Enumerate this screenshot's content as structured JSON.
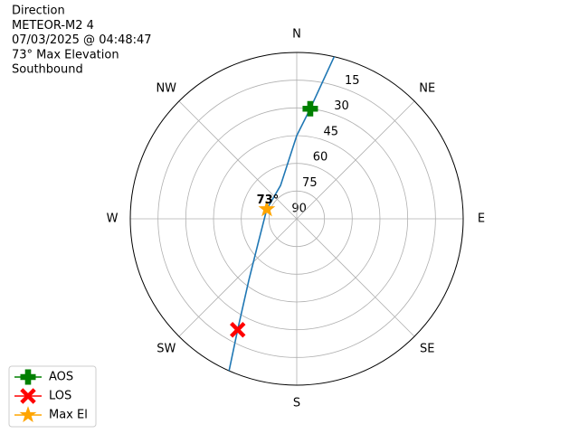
{
  "chart_data": {
    "type": "polar",
    "title_lines": [
      "Direction",
      "METEOR-M2 4",
      "07/03/2025 @ 04:48:47",
      "73° Max Elevation",
      "Southbound"
    ],
    "xticks": [
      {
        "value": 0,
        "label": "N"
      },
      {
        "value": 45,
        "label": "NE"
      },
      {
        "value": 90,
        "label": "E"
      },
      {
        "value": 135,
        "label": "SE"
      },
      {
        "value": 180,
        "label": "S"
      },
      {
        "value": 225,
        "label": "SW"
      },
      {
        "value": 270,
        "label": "W"
      },
      {
        "value": 315,
        "label": "NW"
      }
    ],
    "ylim": [
      90,
      0
    ],
    "yticks": [
      15,
      30,
      45,
      60,
      75,
      90
    ],
    "grid": true,
    "track": {
      "color": "#1f77b4",
      "theta": [
        13,
        7,
        0,
        334,
        288,
        237,
        218,
        208,
        204
      ],
      "r": [
        0,
        30,
        45,
        70,
        73,
        65,
        48,
        22,
        0
      ]
    },
    "series": [
      {
        "name": "AOS",
        "color": "#008000",
        "marker": "plus",
        "theta": [
          7
        ],
        "r": [
          30
        ]
      },
      {
        "name": "LOS",
        "color": "#ff0000",
        "marker": "x",
        "theta": [
          208
        ],
        "r": [
          22
        ]
      },
      {
        "name": "Max El",
        "color": "#ffa500",
        "marker": "star",
        "theta": [
          288
        ],
        "r": [
          73
        ]
      }
    ],
    "annotation": {
      "text": "73°",
      "theta": 288,
      "r": 73
    },
    "legend": "lower left"
  }
}
